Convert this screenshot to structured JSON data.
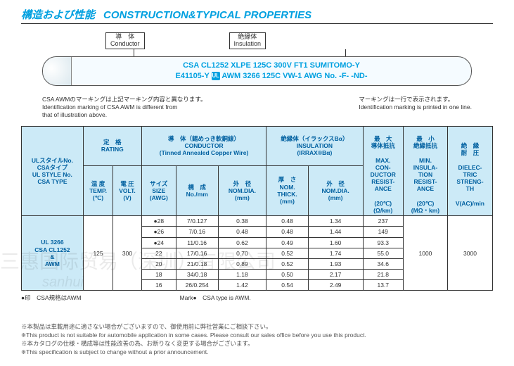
{
  "title": {
    "jp": "構造および性能",
    "en": "CONSTRUCTION&TYPICAL PROPERTIES"
  },
  "diagram": {
    "conductor": {
      "jp": "導　体",
      "en": "Conductor"
    },
    "insulation": {
      "jp": "絶縁体",
      "en": "Insulation"
    },
    "line1": "CSA CL1252 XLPE 125C 300V FT1 SUMITOMO-Y",
    "line2a": "E41105-Y ",
    "line2b": " AWM 3266 125C VW-1 AWG No. -F- -ND-"
  },
  "identNote": {
    "left_jp": "CSA AWMのマーキングは上記マーキング内容と異なります。",
    "left_en1": "Identification marking of CSA AWM is different from",
    "left_en2": "that of illustration above.",
    "right_jp": "マーキングは一行で表示されます。",
    "right_en": "Identification marking is printed in one line."
  },
  "headers": {
    "style": {
      "jp1": "ULスタイルNo.",
      "jp2": "CSAタイプ",
      "en1": "UL STYLE No.",
      "en2": "CSA TYPE"
    },
    "rating": {
      "jp": "定　格",
      "en": "RATING"
    },
    "conductor": {
      "jp": "導　体（錫めっき軟銅線）",
      "en": "CONDUCTOR",
      "sub": "(Tinned Annealed Copper Wire)"
    },
    "insulation": {
      "jp": "絶縁体（イラックスBα）",
      "en": "INSULATION",
      "sub": "(IRRAX®Bα)"
    },
    "maxres": {
      "jp": "最　大\n導体抵抗",
      "en": "MAX.\nCON-\nDUCTOR\nRESIST-\nANCE",
      "unit": "(20℃)\n(Ω/km)"
    },
    "minres": {
      "jp": "最　小\n絶縁抵抗",
      "en": "MIN.\nINSULA-\nTION\nRESIST-\nANCE",
      "unit": "(20℃)\n(MΩ・km)"
    },
    "dielec": {
      "jp": "絶　縁\n耐　圧",
      "en": "DIELEC-\nTRIC\nSTRENG-\nTH",
      "unit": "V(AC)/min"
    },
    "temp": {
      "jp": "温 度",
      "en": "TEMP.",
      "unit": "(℃)"
    },
    "volt": {
      "jp": "電 圧",
      "en": "VOLT.",
      "unit": "(V)"
    },
    "size": {
      "jp": "サイズ",
      "en": "SIZE",
      "unit": "(AWG)"
    },
    "const": {
      "jp": "構　成",
      "en": "No./mm"
    },
    "oddia": {
      "jp": "外　径",
      "en": "NOM.DIA.",
      "unit": "(mm)"
    },
    "thick": {
      "jp": "厚　さ",
      "en": "NOM.\nTHICK.",
      "unit": "(mm)"
    },
    "oddia2": {
      "jp": "外　径",
      "en": "NOM.DIA.",
      "unit": "(mm)"
    }
  },
  "styleCell": "UL 3266\nCSA CL1252\n&\nAWM",
  "temp_val": "125",
  "volt_val": "300",
  "minres_val": "1000",
  "dielec_val": "3000",
  "rows": [
    {
      "size": "●28",
      "const": "7/0.127",
      "dia": "0.38",
      "thick": "0.48",
      "od": "1.34",
      "res": "237"
    },
    {
      "size": "●26",
      "const": "7/0.16",
      "dia": "0.48",
      "thick": "0.48",
      "od": "1.44",
      "res": "149"
    },
    {
      "size": "●24",
      "const": "11/0.16",
      "dia": "0.62",
      "thick": "0.49",
      "od": "1.60",
      "res": "93.3"
    },
    {
      "size": "22",
      "const": "17/0.16",
      "dia": "0.70",
      "thick": "0.52",
      "od": "1.74",
      "res": "55.0"
    },
    {
      "size": "20",
      "const": "21/0.18",
      "dia": "0.89",
      "thick": "0.52",
      "od": "1.93",
      "res": "34.6"
    },
    {
      "size": "18",
      "const": "34/0.18",
      "dia": "1.18",
      "thick": "0.50",
      "od": "2.17",
      "res": "21.8"
    },
    {
      "size": "16",
      "const": "26/0.254",
      "dia": "1.42",
      "thick": "0.54",
      "od": "2.49",
      "res": "13.7"
    }
  ],
  "markNote": {
    "jp": "●印　CSA規格はAWM",
    "en": "Mark●　CSA type is AWM."
  },
  "footnotes": {
    "f1jp": "※本製品は車載用途に適さない場合がございますので、御使用前に弊社営業にご相談下さい。",
    "f1en": "※This product is not suitable for automobile application in some cases. Please consult our sales office before you use this product.",
    "f2jp": "※本カタログの仕様・構成等は性能改善の為、お断りなく変更する場合がございます。",
    "f2en": "※This specification is subject to change without a prior announcement."
  },
  "watermark": "三惠国际贸易（深圳）有限公司",
  "colors": {
    "accent": "#00a0e0",
    "header_bg": "#cceaf7",
    "header_text": "#0060a0",
    "border": "#333333"
  }
}
